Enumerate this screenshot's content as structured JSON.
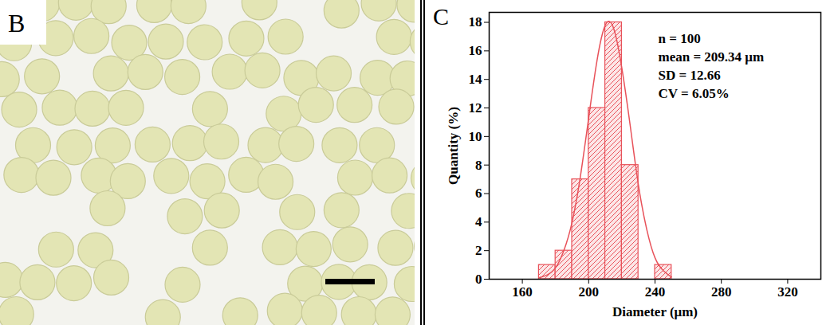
{
  "chart_data": [
    {
      "type": "image",
      "panel": "B"
    },
    {
      "type": "histogram",
      "panel": "C",
      "xlabel": "Diameter (μm)",
      "ylabel": "Quantity (%)",
      "bins": [
        170,
        180,
        190,
        200,
        210,
        220,
        230,
        240,
        250
      ],
      "values": [
        1,
        2,
        7,
        12,
        18,
        8,
        0,
        1
      ],
      "color": "#e8525a",
      "series": [
        {
          "type": "line",
          "color": "#e8525a",
          "x": [
            170,
            175,
            180,
            185,
            190,
            195,
            200,
            205,
            210,
            215,
            220,
            225,
            230,
            235,
            240,
            245,
            250
          ],
          "values": [
            0.1,
            0.3,
            0.8,
            2,
            4,
            7.2,
            11.3,
            15.3,
            17.8,
            17.6,
            14.8,
            10.8,
            6.6,
            3.5,
            1.5,
            0.6,
            0.15
          ]
        }
      ],
      "annotations": [
        "n = 100",
        "mean = 209.34 μm",
        "SD = 12.66",
        "CV = 6.05%"
      ],
      "xlim": [
        140,
        340
      ],
      "xticks": [
        160,
        200,
        240,
        280,
        320
      ],
      "ylim": [
        0,
        18.7
      ],
      "yticks": [
        0,
        2,
        4,
        6,
        8,
        10,
        12,
        14,
        16,
        18
      ]
    }
  ]
}
